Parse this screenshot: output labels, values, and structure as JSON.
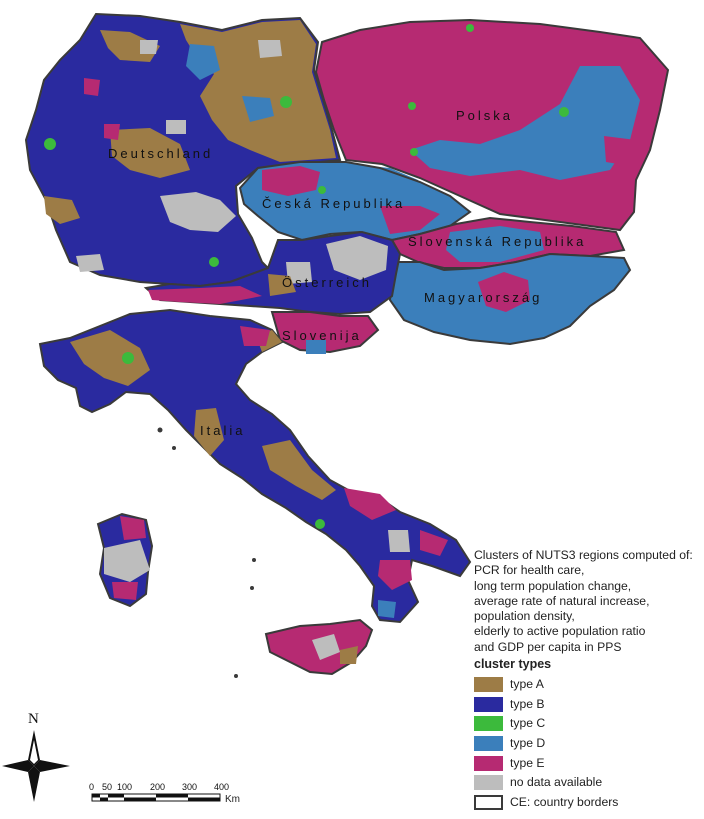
{
  "map": {
    "countries": [
      {
        "id": "de",
        "label": "Deutschland"
      },
      {
        "id": "pl",
        "label": "Polska"
      },
      {
        "id": "cz",
        "label": "Česká Republika"
      },
      {
        "id": "sk",
        "label": "Slovenská Republika"
      },
      {
        "id": "at",
        "label": "Österreich"
      },
      {
        "id": "hu",
        "label": "Magyarország"
      },
      {
        "id": "si",
        "label": "Slovenija"
      },
      {
        "id": "it",
        "label": "Italia"
      }
    ],
    "colors": {
      "type_a": "#9d7c46",
      "type_b": "#2a2a9f",
      "type_c": "#3cba3c",
      "type_d": "#3b7fbb",
      "type_e": "#b62a72",
      "no_data": "#bdbdbd",
      "border": "#3a3a3a"
    }
  },
  "description": {
    "lines": [
      "Clusters of NUTS3 regions computed of:",
      "PCR for health care,",
      "long term population change,",
      "average rate of natural increase,",
      "population density,",
      "elderly to active population ratio",
      "and GDP per capita in PPS"
    ]
  },
  "legend": {
    "title": "cluster types",
    "items": [
      {
        "label": "type A",
        "color": "#9d7c46"
      },
      {
        "label": "type B",
        "color": "#2a2a9f"
      },
      {
        "label": "type C",
        "color": "#3cba3c"
      },
      {
        "label": "type D",
        "color": "#3b7fbb"
      },
      {
        "label": "type E",
        "color": "#b62a72"
      },
      {
        "label": "no data available",
        "color": "#bdbdbd"
      },
      {
        "label": "CE: country borders",
        "color": "#ffffff"
      }
    ]
  },
  "scale_bar": {
    "ticks": [
      "0",
      "50",
      "100",
      "200",
      "300",
      "400"
    ],
    "unit": "Km"
  },
  "north_arrow": {
    "label": "N"
  }
}
